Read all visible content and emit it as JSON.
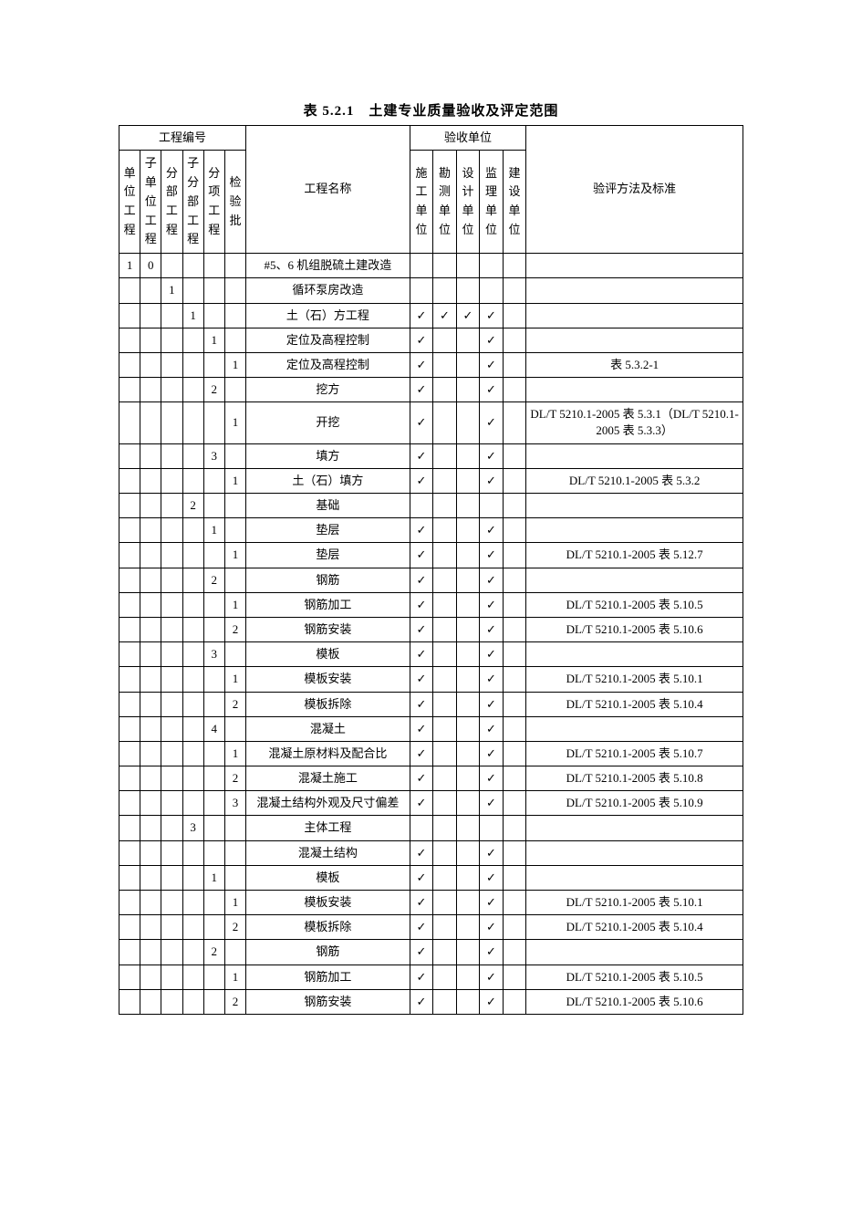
{
  "title": "表 5.2.1　土建专业质量验收及评定范围",
  "group_header_project_no": "工程编号",
  "group_header_accept_unit": "验收单位",
  "header": {
    "c1": "单位工程",
    "c2": "子单位工程",
    "c3": "分部工程",
    "c4": "子分部工程",
    "c5": "分项工程",
    "c6": "检验批",
    "c7": "工程名称",
    "c8": "施工单位",
    "c9": "勘测单位",
    "c10": "设计单位",
    "c11": "监理单位",
    "c12": "建设单位",
    "c13": "验评方法及标准"
  },
  "check": "√",
  "rows": [
    {
      "c": [
        "1",
        "0",
        "",
        "",
        "",
        "",
        "#5、6 机组脱硫土建改造",
        "",
        "",
        "",
        "",
        "",
        ""
      ]
    },
    {
      "c": [
        "",
        "",
        "1",
        "",
        "",
        "",
        "循环泵房改造",
        "",
        "",
        "",
        "",
        "",
        ""
      ]
    },
    {
      "c": [
        "",
        "",
        "",
        "1",
        "",
        "",
        "土（石）方工程",
        "✓",
        "✓",
        "✓",
        "✓",
        "",
        ""
      ]
    },
    {
      "c": [
        "",
        "",
        "",
        "",
        "1",
        "",
        "定位及高程控制",
        "✓",
        "",
        "",
        "✓",
        "",
        ""
      ]
    },
    {
      "c": [
        "",
        "",
        "",
        "",
        "",
        "1",
        "定位及高程控制",
        "✓",
        "",
        "",
        "✓",
        "",
        "表 5.3.2-1"
      ]
    },
    {
      "c": [
        "",
        "",
        "",
        "",
        "2",
        "",
        "挖方",
        "✓",
        "",
        "",
        "✓",
        "",
        ""
      ]
    },
    {
      "c": [
        "",
        "",
        "",
        "",
        "",
        "1",
        "开挖",
        "✓",
        "",
        "",
        "✓",
        "",
        "DL/T 5210.1-2005 表 5.3.1（DL/T 5210.1-2005 表 5.3.3）"
      ]
    },
    {
      "c": [
        "",
        "",
        "",
        "",
        "3",
        "",
        "填方",
        "✓",
        "",
        "",
        "✓",
        "",
        ""
      ]
    },
    {
      "c": [
        "",
        "",
        "",
        "",
        "",
        "1",
        "土（石）填方",
        "✓",
        "",
        "",
        "✓",
        "",
        "DL/T 5210.1-2005 表 5.3.2"
      ]
    },
    {
      "c": [
        "",
        "",
        "",
        "2",
        "",
        "",
        "基础",
        "",
        "",
        "",
        "",
        "",
        ""
      ]
    },
    {
      "c": [
        "",
        "",
        "",
        "",
        "1",
        "",
        "垫层",
        "✓",
        "",
        "",
        "✓",
        "",
        ""
      ]
    },
    {
      "c": [
        "",
        "",
        "",
        "",
        "",
        "1",
        "垫层",
        "✓",
        "",
        "",
        "✓",
        "",
        "DL/T 5210.1-2005 表 5.12.7"
      ]
    },
    {
      "c": [
        "",
        "",
        "",
        "",
        "2",
        "",
        "钢筋",
        "✓",
        "",
        "",
        "✓",
        "",
        ""
      ]
    },
    {
      "c": [
        "",
        "",
        "",
        "",
        "",
        "1",
        "钢筋加工",
        "✓",
        "",
        "",
        "✓",
        "",
        "DL/T 5210.1-2005 表 5.10.5"
      ]
    },
    {
      "c": [
        "",
        "",
        "",
        "",
        "",
        "2",
        "钢筋安装",
        "✓",
        "",
        "",
        "✓",
        "",
        "DL/T 5210.1-2005 表 5.10.6"
      ]
    },
    {
      "c": [
        "",
        "",
        "",
        "",
        "3",
        "",
        "模板",
        "✓",
        "",
        "",
        "✓",
        "",
        ""
      ]
    },
    {
      "c": [
        "",
        "",
        "",
        "",
        "",
        "1",
        "模板安装",
        "✓",
        "",
        "",
        "✓",
        "",
        "DL/T 5210.1-2005 表 5.10.1"
      ]
    },
    {
      "c": [
        "",
        "",
        "",
        "",
        "",
        "2",
        "模板拆除",
        "✓",
        "",
        "",
        "✓",
        "",
        "DL/T 5210.1-2005 表 5.10.4"
      ]
    },
    {
      "c": [
        "",
        "",
        "",
        "",
        "4",
        "",
        "混凝土",
        "✓",
        "",
        "",
        "✓",
        "",
        ""
      ]
    },
    {
      "c": [
        "",
        "",
        "",
        "",
        "",
        "1",
        "混凝土原材料及配合比",
        "✓",
        "",
        "",
        "✓",
        "",
        "DL/T 5210.1-2005 表 5.10.7"
      ]
    },
    {
      "c": [
        "",
        "",
        "",
        "",
        "",
        "2",
        "混凝土施工",
        "✓",
        "",
        "",
        "✓",
        "",
        "DL/T 5210.1-2005 表 5.10.8"
      ]
    },
    {
      "c": [
        "",
        "",
        "",
        "",
        "",
        "3",
        "混凝土结构外观及尺寸偏差",
        "✓",
        "",
        "",
        "✓",
        "",
        "DL/T 5210.1-2005 表 5.10.9"
      ]
    },
    {
      "c": [
        "",
        "",
        "",
        "3",
        "",
        "",
        "主体工程",
        "",
        "",
        "",
        "",
        "",
        ""
      ]
    },
    {
      "c": [
        "",
        "",
        "",
        "",
        "",
        "",
        "混凝土结构",
        "✓",
        "",
        "",
        "✓",
        "",
        ""
      ]
    },
    {
      "c": [
        "",
        "",
        "",
        "",
        "1",
        "",
        "模板",
        "✓",
        "",
        "",
        "✓",
        "",
        ""
      ]
    },
    {
      "c": [
        "",
        "",
        "",
        "",
        "",
        "1",
        "模板安装",
        "✓",
        "",
        "",
        "✓",
        "",
        "DL/T 5210.1-2005 表 5.10.1"
      ]
    },
    {
      "c": [
        "",
        "",
        "",
        "",
        "",
        "2",
        "模板拆除",
        "✓",
        "",
        "",
        "✓",
        "",
        "DL/T 5210.1-2005 表 5.10.4"
      ]
    },
    {
      "c": [
        "",
        "",
        "",
        "",
        "2",
        "",
        "钢筋",
        "✓",
        "",
        "",
        "✓",
        "",
        ""
      ]
    },
    {
      "c": [
        "",
        "",
        "",
        "",
        "",
        "1",
        "钢筋加工",
        "✓",
        "",
        "",
        "✓",
        "",
        "DL/T 5210.1-2005 表 5.10.5"
      ]
    },
    {
      "c": [
        "",
        "",
        "",
        "",
        "",
        "2",
        "钢筋安装",
        "✓",
        "",
        "",
        "✓",
        "",
        "DL/T 5210.1-2005 表 5.10.6"
      ]
    }
  ]
}
